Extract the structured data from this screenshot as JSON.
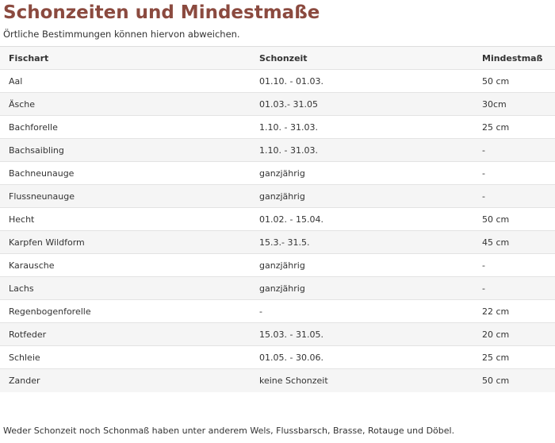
{
  "title": "Schonzeiten und Mindestmaße",
  "subtitle": "Örtliche Bestimmungen können hiervon abweichen.",
  "table": {
    "headers": [
      "Fischart",
      "Schonzeit",
      "Mindestmaß"
    ],
    "rows": [
      [
        "Aal",
        "01.10. - 01.03.",
        "50 cm"
      ],
      [
        "Äsche",
        "01.03.- 31.05",
        "30cm"
      ],
      [
        "Bachforelle",
        "1.10. - 31.03.",
        "25 cm"
      ],
      [
        "Bachsaibling",
        "1.10. - 31.03.",
        "-"
      ],
      [
        "Bachneunauge",
        "ganzjährig",
        "-"
      ],
      [
        "Flussneunauge",
        "ganzjährig",
        "-"
      ],
      [
        "Hecht",
        "01.02. - 15.04.",
        "50 cm"
      ],
      [
        "Karpfen Wildform",
        "15.3.- 31.5.",
        "45 cm"
      ],
      [
        "Karausche",
        "ganzjährig",
        "-"
      ],
      [
        "Lachs",
        "ganzjährig",
        "-"
      ],
      [
        "Regenbogenforelle",
        "-",
        "22 cm"
      ],
      [
        "Rotfeder",
        "15.03. - 31.05.",
        "20 cm"
      ],
      [
        "Schleie",
        "01.05. - 30.06.",
        "25 cm"
      ],
      [
        "Zander",
        "keine Schonzeit",
        "50 cm"
      ]
    ]
  },
  "footnote": "Weder Schonzeit noch Schonmaß haben unter anderem Wels, Flussbarsch, Brasse, Rotauge und Döbel.",
  "colors": {
    "title": "#8b4a3f",
    "row_alt": "#f5f5f5",
    "border": "#e3e3e3"
  }
}
